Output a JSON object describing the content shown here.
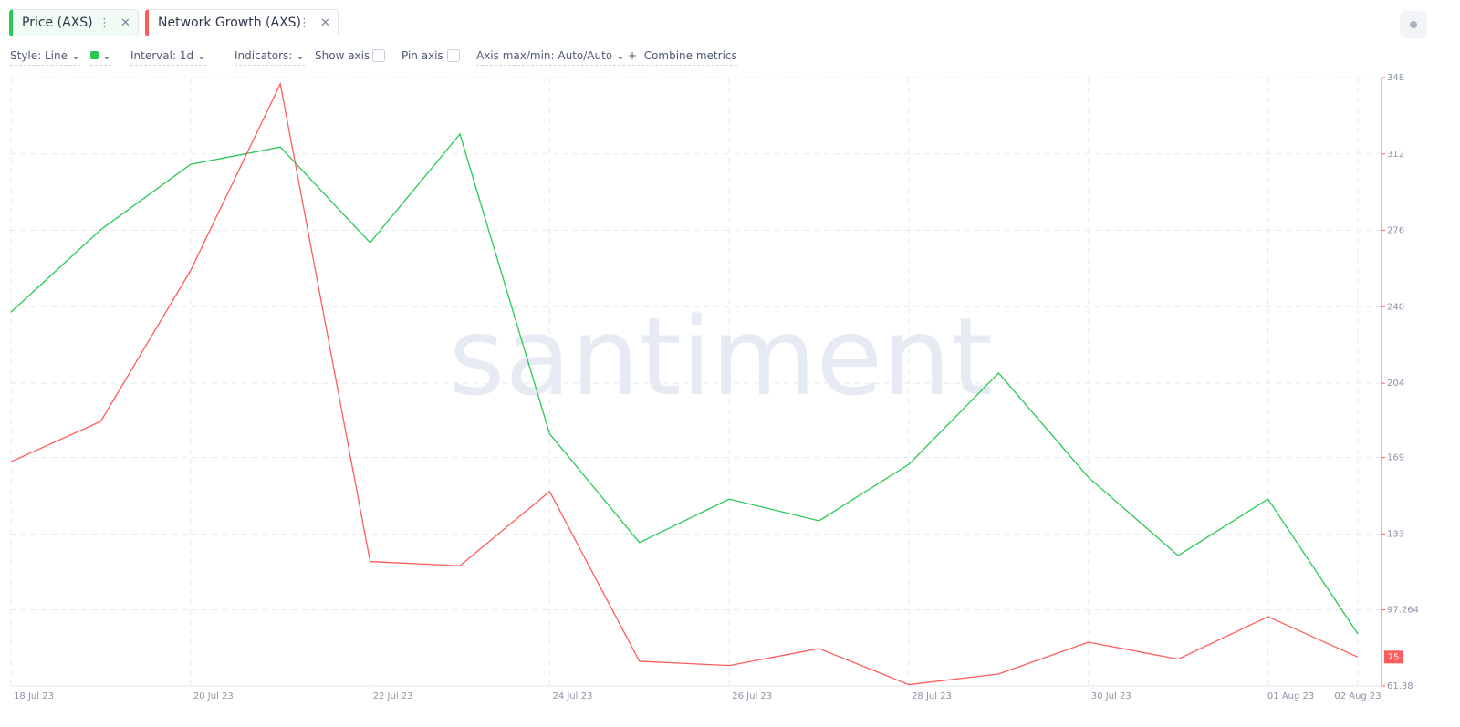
{
  "ui": {
    "toolbar": {
      "style": "Style: Line",
      "interval": "Interval: 1d",
      "indicators": "Indicators:",
      "show_axis": "Show axis",
      "pin_axis": "Pin axis",
      "axis_minmax": "Axis max/min: Auto/Auto",
      "combine": "Combine metrics"
    },
    "watermark": "santiment"
  },
  "chart_data": {
    "type": "line",
    "categories": [
      "18 Jul 23",
      null,
      "20 Jul 23",
      null,
      "22 Jul 23",
      null,
      "24 Jul 23",
      null,
      "26 Jul 23",
      null,
      "28 Jul 23",
      null,
      "30 Jul 23",
      null,
      "01 Aug 23",
      "02 Aug 23"
    ],
    "series": [
      {
        "name": "Price (AXS)",
        "color": "#26c953",
        "values": [
          6.06,
          6.25,
          6.4,
          6.44,
          6.22,
          6.47,
          5.78,
          5.53,
          5.63,
          5.58,
          5.71,
          5.92,
          5.68,
          5.5,
          5.63,
          5.32
        ]
      },
      {
        "name": "Network Growth (AXS)",
        "color": "#ff5b5b",
        "axis": "y2",
        "values": [
          167,
          186,
          257,
          345,
          120,
          118,
          153,
          73,
          71,
          79,
          62,
          67,
          82,
          74,
          94,
          75
        ]
      }
    ],
    "ylim": [
      5.2,
      6.6
    ],
    "y2lim": [
      61.38,
      348
    ],
    "y2ticks": [
      61.38,
      97.264,
      133,
      169,
      204,
      240,
      276,
      312,
      348
    ],
    "grid": true
  }
}
